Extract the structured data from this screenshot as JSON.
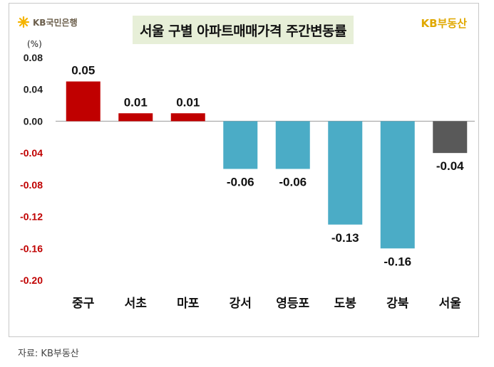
{
  "header": {
    "bank_logo_text": "KB국민은행",
    "title": "서울 구별 아파트매매가격 주간변동률",
    "brand": "KB부동산"
  },
  "footer": {
    "source": "자료: KB부동산"
  },
  "colors": {
    "positive": "#c00000",
    "negative": "#4bacc6",
    "total": "#595959",
    "axis_negative_label": "#c00000"
  },
  "chart_data": {
    "type": "bar",
    "title": "서울 구별 아파트매매가격 주간변동률",
    "unit_label": "(%)",
    "categories": [
      "중구",
      "서초",
      "마포",
      "강서",
      "영등포",
      "도봉",
      "강북",
      "서울"
    ],
    "values": [
      0.05,
      0.01,
      0.01,
      -0.06,
      -0.06,
      -0.13,
      -0.16,
      -0.04
    ],
    "labels": [
      "0.05",
      "0.01",
      "0.01",
      "-0.06",
      "-0.06",
      "-0.13",
      "-0.16",
      "-0.04"
    ],
    "ylim": [
      -0.2,
      0.08
    ],
    "yticks": [
      "0.08",
      "0.04",
      "0.00",
      "-0.04",
      "-0.08",
      "-0.12",
      "-0.16",
      "-0.20"
    ],
    "grid": false,
    "legend": "none"
  }
}
